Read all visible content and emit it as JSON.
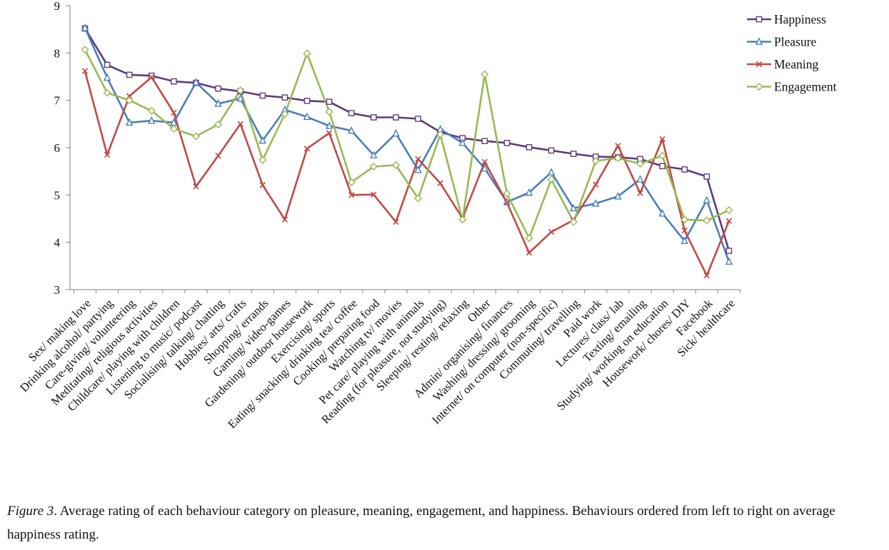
{
  "chart_data": {
    "type": "line",
    "title": "",
    "xlabel": "",
    "ylabel": "",
    "ylim": [
      3,
      9
    ],
    "yticks": [
      "3",
      "4",
      "5",
      "6",
      "7",
      "8",
      "9"
    ],
    "grid": false,
    "legend_position": "top-right",
    "categories": [
      "Sex/ making love",
      "Drinking alcohol/ partying",
      "Care-giving/ volunteering",
      "Meditating/ religious activities",
      "Childcare/ playing with children",
      "Listening to music/ podcast",
      "Socialising/ talking/ chatting",
      "Hobbies/ arts/ crafts",
      "Shopping/ errands",
      "Gaming/ video-games",
      "Gardening/ outdoor housework",
      "Exercising/ sports",
      "Eating/ snacking/ drinking tea/ coffee",
      "Cooking/ preparing food",
      "Watching tv/ movies",
      "Pet care/ playing with animals",
      "Reading (for pleasure, not studying)",
      "Sleeping/ resting/ relaxing",
      "Other",
      "Admin/ organising/ finances",
      "Washing/ dressing/ grooming",
      "Internet/  on computer (non-specific)",
      "Commuting/ travelling",
      "Paid work",
      "Lectures/ class/ lab",
      "Texting/ emailing",
      "Studying/ working on education",
      "Housework/ chores/ DIY",
      "Facebook",
      "Sick/ healthcare"
    ],
    "series": [
      {
        "name": "Happiness",
        "color": "#5b3d79",
        "marker": "square",
        "values": [
          8.52,
          7.75,
          7.54,
          7.52,
          7.4,
          7.37,
          7.25,
          7.19,
          7.1,
          7.06,
          6.99,
          6.97,
          6.73,
          6.64,
          6.64,
          6.61,
          6.33,
          6.2,
          6.14,
          6.1,
          6.01,
          5.94,
          5.87,
          5.81,
          5.8,
          5.76,
          5.61,
          5.54,
          5.39,
          3.82
        ]
      },
      {
        "name": "Pleasure",
        "color": "#4a7ebb",
        "marker": "triangle",
        "values": [
          8.53,
          7.48,
          6.53,
          6.57,
          6.53,
          7.38,
          6.93,
          7.04,
          6.15,
          6.8,
          6.65,
          6.46,
          6.36,
          5.84,
          6.3,
          5.53,
          6.39,
          6.1,
          5.56,
          4.85,
          5.05,
          5.48,
          4.72,
          4.82,
          4.97,
          5.33,
          4.61,
          4.03,
          4.89,
          3.59
        ]
      },
      {
        "name": "Meaning",
        "color": "#be4b48",
        "marker": "x",
        "values": [
          7.62,
          5.85,
          7.09,
          7.49,
          6.74,
          5.18,
          5.83,
          6.5,
          5.21,
          4.48,
          5.98,
          6.31,
          5.0,
          5.01,
          4.43,
          5.76,
          5.25,
          4.51,
          5.7,
          4.84,
          3.78,
          4.22,
          4.47,
          5.22,
          6.04,
          5.04,
          6.18,
          4.25,
          3.3,
          4.45
        ]
      },
      {
        "name": "Engagement",
        "color": "#98b954",
        "marker": "diamond",
        "values": [
          8.07,
          7.16,
          7.0,
          6.78,
          6.4,
          6.24,
          6.49,
          7.21,
          5.74,
          6.71,
          7.99,
          6.76,
          5.27,
          5.6,
          5.63,
          4.93,
          6.28,
          4.48,
          7.55,
          5.03,
          4.09,
          5.33,
          4.43,
          5.72,
          5.78,
          5.66,
          5.83,
          4.48,
          4.46,
          4.68
        ]
      }
    ]
  },
  "caption": {
    "figure_label": "Figure 3",
    "text": ". Average rating of each behaviour category on pleasure, meaning, engagement, and happiness. Behaviours ordered from left to right on average happiness rating."
  }
}
